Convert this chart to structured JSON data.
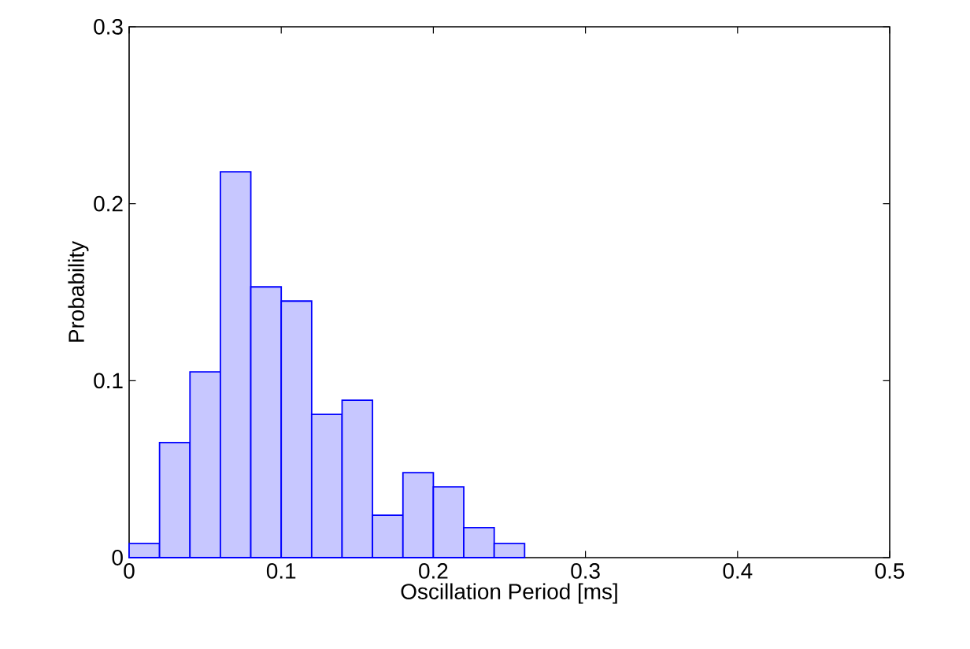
{
  "chart_data": {
    "type": "histogram",
    "xlabel": "Oscillation Period [ms]",
    "ylabel": "Probability",
    "bins": [
      0,
      0.02,
      0.04,
      0.06,
      0.08,
      0.1,
      0.12,
      0.14,
      0.16,
      0.18,
      0.2,
      0.22,
      0.24,
      0.26
    ],
    "values": [
      0.008,
      0.065,
      0.105,
      0.218,
      0.153,
      0.145,
      0.081,
      0.089,
      0.024,
      0.048,
      0.04,
      0.017,
      0.008
    ],
    "color": "#0000ff",
    "xlim": [
      0,
      0.5
    ],
    "ylim": [
      0,
      0.3
    ],
    "xticks": [
      0,
      0.1,
      0.2,
      0.3,
      0.4,
      0.5
    ],
    "yticks": [
      0,
      0.1,
      0.2,
      0.3
    ],
    "grid": false
  }
}
